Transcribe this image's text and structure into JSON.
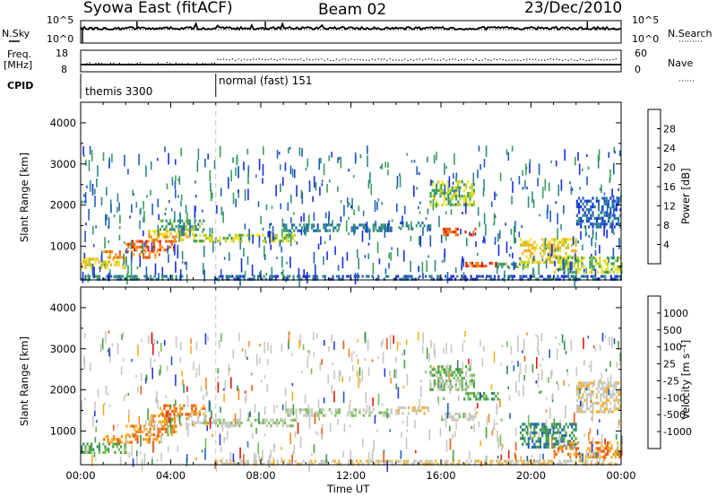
{
  "header": {
    "station": "Syowa East (fitACF)",
    "beam": "Beam 02",
    "date": "23/Dec/2010"
  },
  "noise_panel": {
    "left_label": "N.Sky",
    "right_label": "N.Search",
    "left_ticks": [
      "10^5",
      "10^0"
    ],
    "right_ticks": [
      "10^5",
      "10^0"
    ]
  },
  "freq_panel": {
    "left_label_1": "Freq.",
    "left_label_2": "[MHz]",
    "right_label": "Nave",
    "left_ticks": [
      "18",
      "8"
    ],
    "right_ticks": [
      "60",
      "0"
    ]
  },
  "cpid": {
    "label": "CPID",
    "modes": [
      {
        "name": "themis 3300",
        "start_hour": 0
      },
      {
        "name": "normal (fast) 151",
        "start_hour": 6
      }
    ]
  },
  "chart_data": [
    {
      "type": "heatmap",
      "panel": "power",
      "ylabel": "Slant Range [km]",
      "xlabel": "Time UT",
      "xlim_hours": [
        0,
        24
      ],
      "ylim_km": [
        180,
        4500
      ],
      "x_ticks": [
        "00:00",
        "04:00",
        "08:00",
        "12:00",
        "16:00",
        "20:00",
        "00:00"
      ],
      "y_ticks": [
        1000,
        2000,
        3000,
        4000
      ],
      "colorbar": {
        "label": "Power [dB]",
        "ticks": [
          4,
          8,
          12,
          16,
          20,
          24,
          28
        ],
        "colors": [
          "#1a2ee0",
          "#1f5fc0",
          "#2f8a86",
          "#3aa05a",
          "#b8cc2a",
          "#f5e020",
          "#f5b020",
          "#f08a20",
          "#ea5a18",
          "#e01a10"
        ]
      },
      "bands": [
        {
          "t0": 0.0,
          "t1": 4.5,
          "r0": 180,
          "r1": 300,
          "level": 2
        },
        {
          "t0": 0.0,
          "t1": 2.0,
          "r0": 500,
          "r1": 720,
          "level": 5
        },
        {
          "t0": 1.0,
          "t1": 3.5,
          "r0": 720,
          "r1": 900,
          "level": 7
        },
        {
          "t0": 2.0,
          "t1": 4.2,
          "r0": 900,
          "r1": 1150,
          "level": 8
        },
        {
          "t0": 3.0,
          "t1": 5.0,
          "r0": 1150,
          "r1": 1400,
          "level": 6
        },
        {
          "t0": 3.5,
          "t1": 5.5,
          "r0": 1400,
          "r1": 1650,
          "level": 3
        },
        {
          "t0": 5.0,
          "t1": 9.5,
          "r0": 1150,
          "r1": 1300,
          "level": 4
        },
        {
          "t0": 9.0,
          "t1": 11.5,
          "r0": 1350,
          "r1": 1550,
          "level": 2
        },
        {
          "t0": 12.0,
          "t1": 13.8,
          "r0": 1350,
          "r1": 1550,
          "level": 2
        },
        {
          "t0": 14.0,
          "t1": 15.5,
          "r0": 1400,
          "r1": 1600,
          "level": 2
        },
        {
          "t0": 15.5,
          "t1": 17.5,
          "r0": 2000,
          "r1": 2600,
          "level": 4
        },
        {
          "t0": 16.0,
          "t1": 17.5,
          "r0": 1250,
          "r1": 1450,
          "level": 8
        },
        {
          "t0": 17.0,
          "t1": 18.5,
          "r0": 500,
          "r1": 620,
          "level": 8
        },
        {
          "t0": 18.5,
          "t1": 20.0,
          "r0": 480,
          "r1": 600,
          "level": 3
        },
        {
          "t0": 19.5,
          "t1": 22.0,
          "r0": 600,
          "r1": 1200,
          "level": 5
        },
        {
          "t0": 21.0,
          "t1": 24.0,
          "r0": 400,
          "r1": 750,
          "level": 4
        },
        {
          "t0": 6.0,
          "t1": 24.0,
          "r0": 180,
          "r1": 300,
          "level": 1
        },
        {
          "t0": 22.0,
          "t1": 24.0,
          "r0": 1500,
          "r1": 2200,
          "level": 1
        }
      ]
    },
    {
      "type": "heatmap",
      "panel": "velocity",
      "ylabel": "Slant Range [km]",
      "xlabel": "Time UT",
      "xlim_hours": [
        0,
        24
      ],
      "ylim_km": [
        180,
        4500
      ],
      "x_ticks": [
        "00:00",
        "04:00",
        "08:00",
        "12:00",
        "16:00",
        "20:00",
        "00:00"
      ],
      "y_ticks": [
        1000,
        2000,
        3000,
        4000
      ],
      "colorbar": {
        "label": "Velocity [m s⁻¹]",
        "ticks": [
          "1000",
          "500",
          "100",
          "25",
          "-25",
          "-100",
          "-500",
          "-1000"
        ],
        "colors": [
          "#2a3ad8",
          "#2060b8",
          "#2f8f5a",
          "#4aa040",
          "#70c050",
          "#c8c8c0",
          "#c8c8c0",
          "#f5b020",
          "#f08a20",
          "#ea5a18",
          "#e01a10"
        ]
      },
      "bands": [
        {
          "t0": 0.0,
          "t1": 2.0,
          "r0": 500,
          "r1": 720,
          "level": 3
        },
        {
          "t0": 1.0,
          "t1": 3.5,
          "r0": 720,
          "r1": 900,
          "level": 8
        },
        {
          "t0": 2.0,
          "t1": 4.2,
          "r0": 900,
          "r1": 1150,
          "level": 8
        },
        {
          "t0": 3.0,
          "t1": 5.0,
          "r0": 1150,
          "r1": 1400,
          "level": 7
        },
        {
          "t0": 3.5,
          "t1": 5.5,
          "r0": 1400,
          "r1": 1650,
          "level": 8
        },
        {
          "t0": 5.0,
          "t1": 9.5,
          "r0": 1150,
          "r1": 1300,
          "level": 5
        },
        {
          "t0": 9.0,
          "t1": 11.5,
          "r0": 1350,
          "r1": 1550,
          "level": 5
        },
        {
          "t0": 12.0,
          "t1": 13.8,
          "r0": 1350,
          "r1": 1550,
          "level": 5
        },
        {
          "t0": 14.0,
          "t1": 15.5,
          "r0": 1400,
          "r1": 1600,
          "level": 6
        },
        {
          "t0": 15.5,
          "t1": 17.5,
          "r0": 2000,
          "r1": 2600,
          "level": 4
        },
        {
          "t0": 16.0,
          "t1": 17.5,
          "r0": 1250,
          "r1": 1450,
          "level": 5
        },
        {
          "t0": 17.0,
          "t1": 18.5,
          "r0": 1800,
          "r1": 1950,
          "level": 3
        },
        {
          "t0": 19.5,
          "t1": 22.0,
          "r0": 600,
          "r1": 1200,
          "level": 2
        },
        {
          "t0": 21.0,
          "t1": 24.0,
          "r0": 400,
          "r1": 750,
          "level": 8
        },
        {
          "t0": 6.0,
          "t1": 24.0,
          "r0": 180,
          "r1": 300,
          "level": 6
        },
        {
          "t0": 22.0,
          "t1": 24.0,
          "r0": 1500,
          "r1": 2200,
          "level": 6
        }
      ]
    }
  ]
}
